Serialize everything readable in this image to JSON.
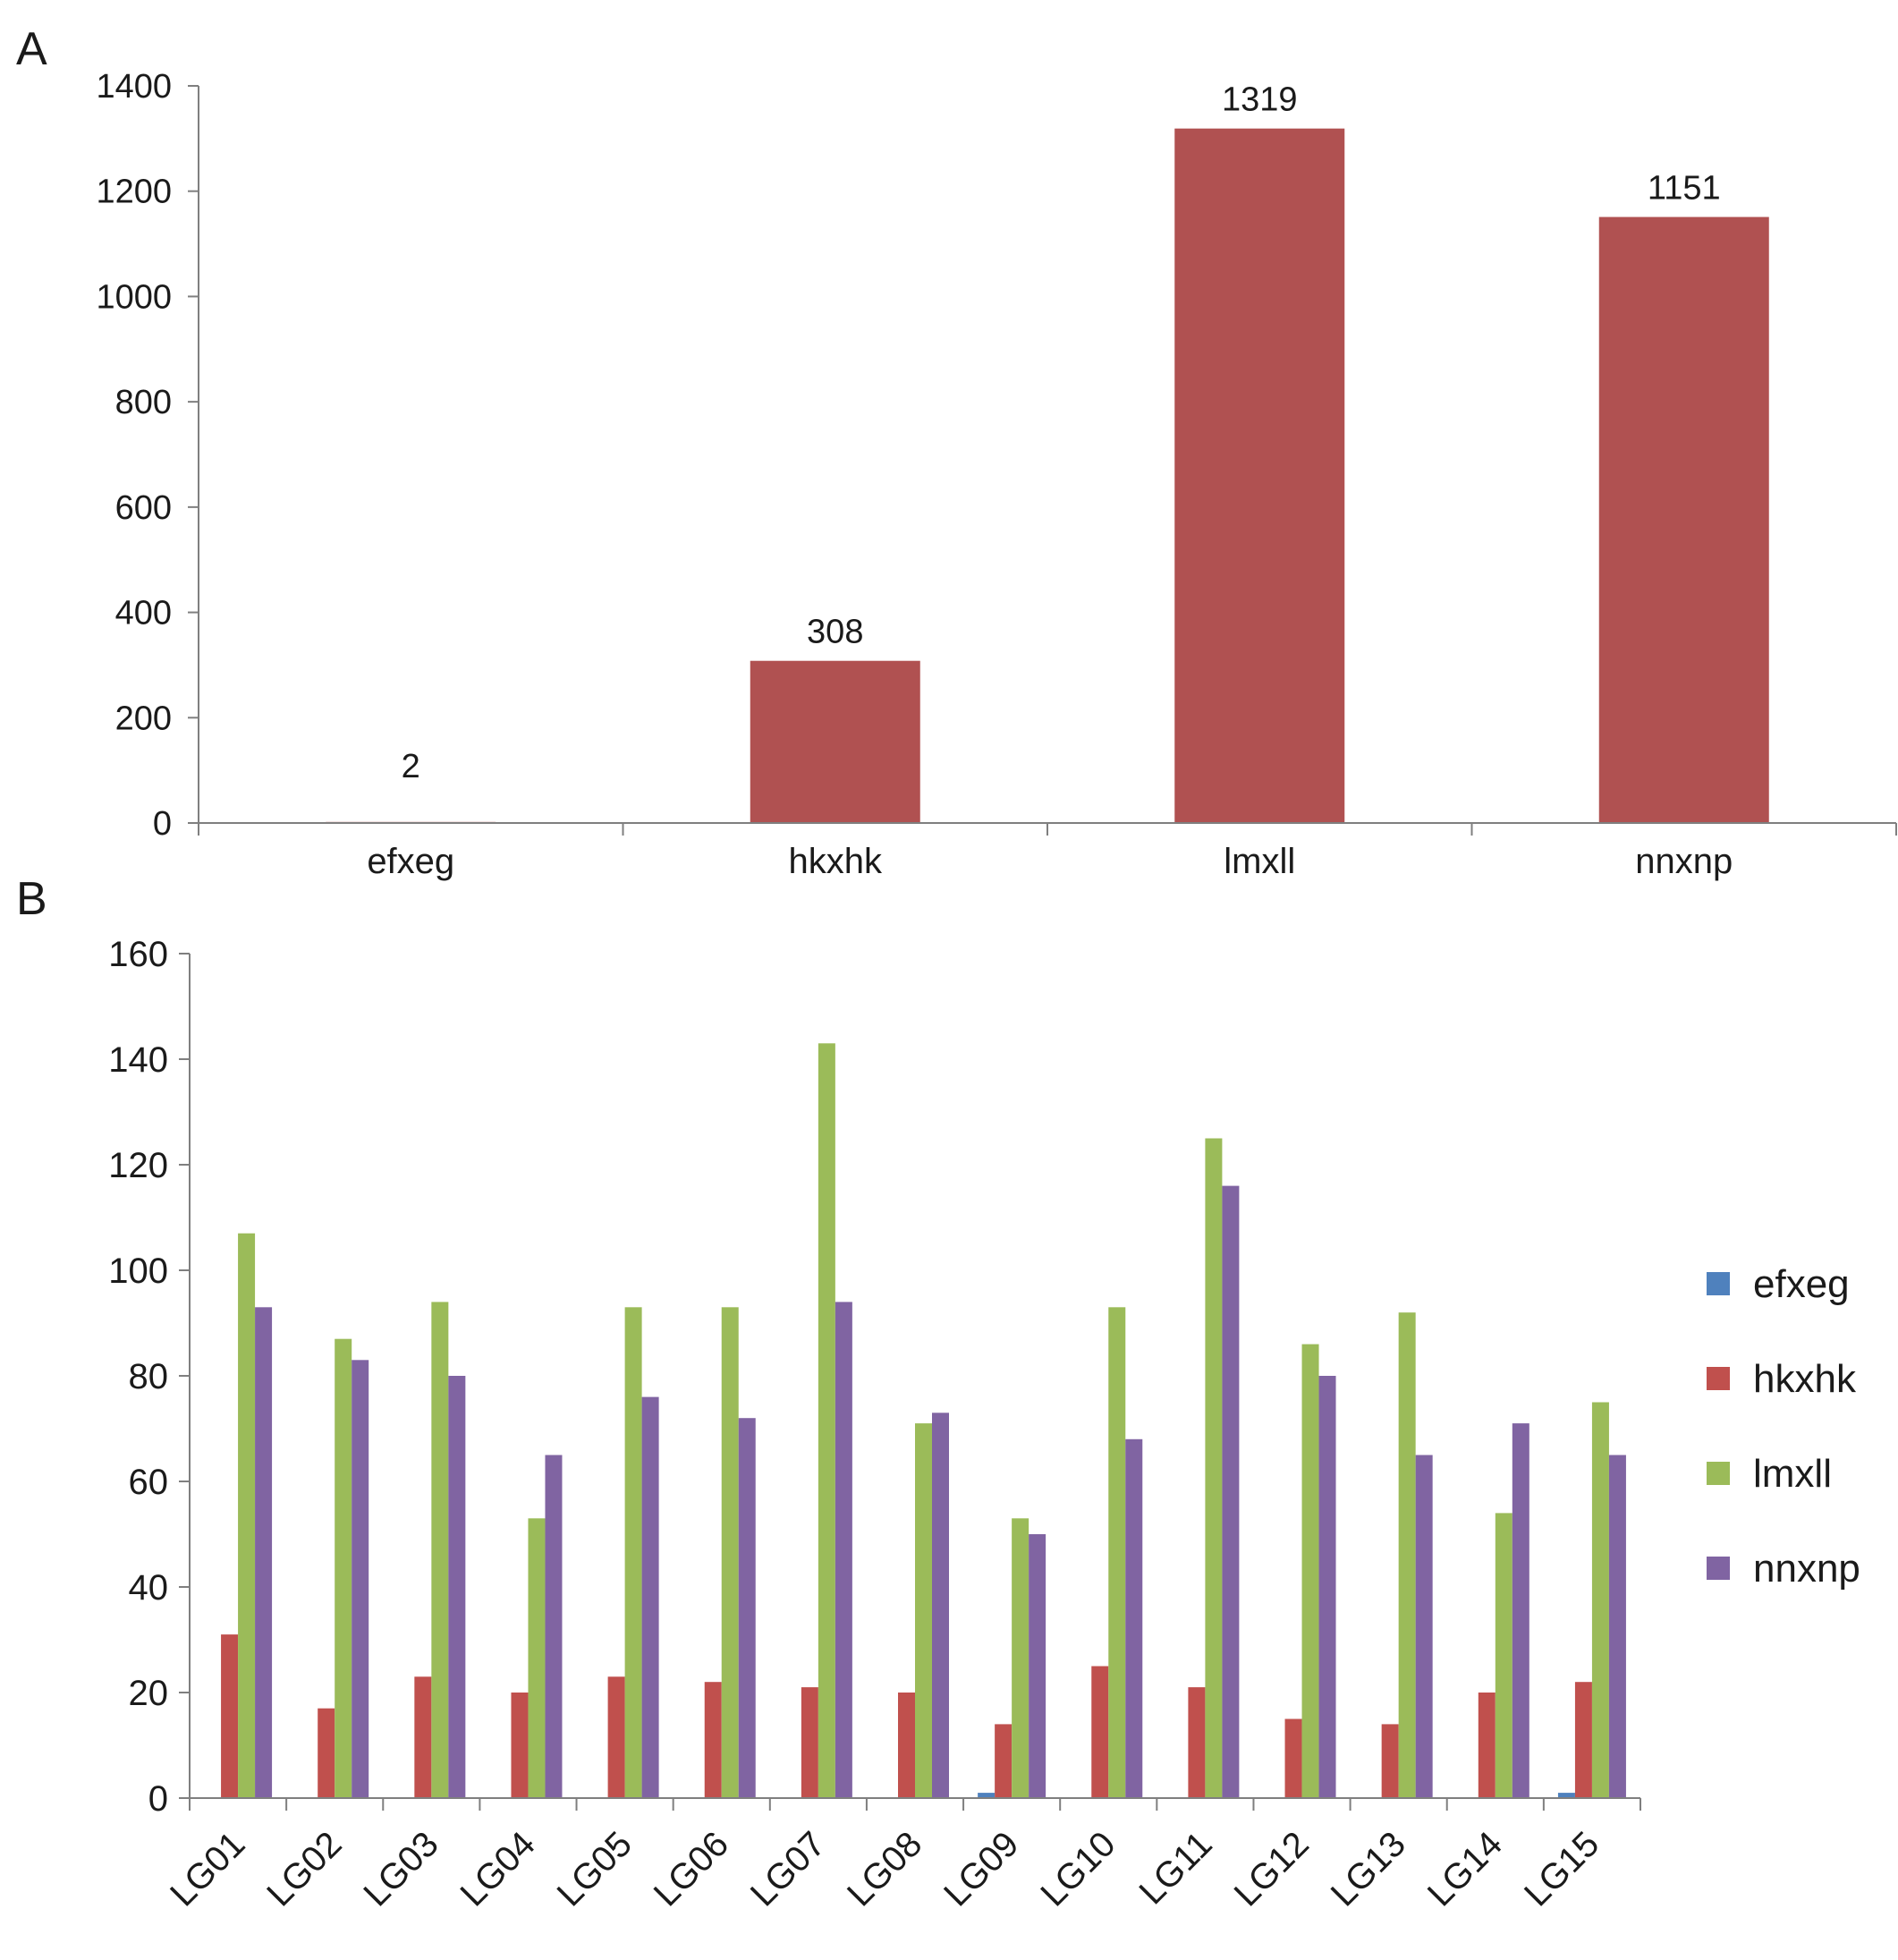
{
  "chart_data": [
    {
      "panel_label": "A",
      "type": "bar",
      "categories": [
        "efxeg",
        "hkxhk",
        "lmxll",
        "nnxnp"
      ],
      "values": [
        2,
        308,
        1319,
        1151
      ],
      "data_labels": [
        "2",
        "308",
        "1319",
        "1151"
      ],
      "yticks": [
        "0",
        "200",
        "400",
        "600",
        "800",
        "1000",
        "1200",
        "1400"
      ],
      "ylim": [
        0,
        1400
      ],
      "grid": false,
      "legend": "none",
      "bar_color": "#B05151"
    },
    {
      "panel_label": "B",
      "type": "bar",
      "categories": [
        "LG01",
        "LG02",
        "LG03",
        "LG04",
        "LG05",
        "LG06",
        "LG07",
        "LG08",
        "LG09",
        "LG10",
        "LG11",
        "LG12",
        "LG13",
        "LG14",
        "LG15"
      ],
      "series": [
        {
          "name": "efxeg",
          "color": "#4F81BD",
          "values": [
            0,
            0,
            0,
            0,
            0,
            0,
            0,
            0,
            1,
            0,
            0,
            0,
            0,
            0,
            1
          ]
        },
        {
          "name": "hkxhk",
          "color": "#C0504D",
          "values": [
            31,
            17,
            23,
            20,
            23,
            22,
            21,
            20,
            14,
            25,
            21,
            15,
            14,
            20,
            22
          ]
        },
        {
          "name": "lmxll",
          "color": "#9BBB59",
          "values": [
            107,
            87,
            94,
            53,
            93,
            93,
            143,
            71,
            53,
            93,
            125,
            86,
            92,
            54,
            75
          ]
        },
        {
          "name": "nnxnp",
          "color": "#8064A2",
          "values": [
            93,
            83,
            80,
            65,
            76,
            72,
            94,
            73,
            50,
            68,
            116,
            80,
            65,
            71,
            65
          ]
        }
      ],
      "yticks": [
        "0",
        "20",
        "40",
        "60",
        "80",
        "100",
        "120",
        "140",
        "160"
      ],
      "ylim": [
        0,
        160
      ],
      "grid": false,
      "legend": "right"
    }
  ]
}
